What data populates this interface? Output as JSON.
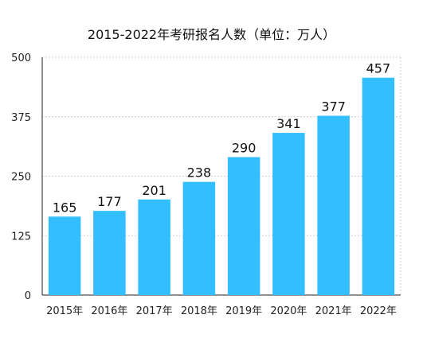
{
  "chart_data": {
    "type": "bar",
    "title": "2015-2022年考研报名人数（单位：万人）",
    "xlabel": "",
    "ylabel": "",
    "categories": [
      "2015年",
      "2016年",
      "2017年",
      "2018年",
      "2019年",
      "2020年",
      "2021年",
      "2022年"
    ],
    "values": [
      165,
      177,
      201,
      238,
      290,
      341,
      377,
      457
    ],
    "ylim": [
      0,
      500
    ],
    "yticks": [
      0,
      125,
      250,
      375,
      500
    ],
    "grid": true,
    "bar_color": "#33bfff",
    "data_labels": true,
    "legend": "none"
  }
}
